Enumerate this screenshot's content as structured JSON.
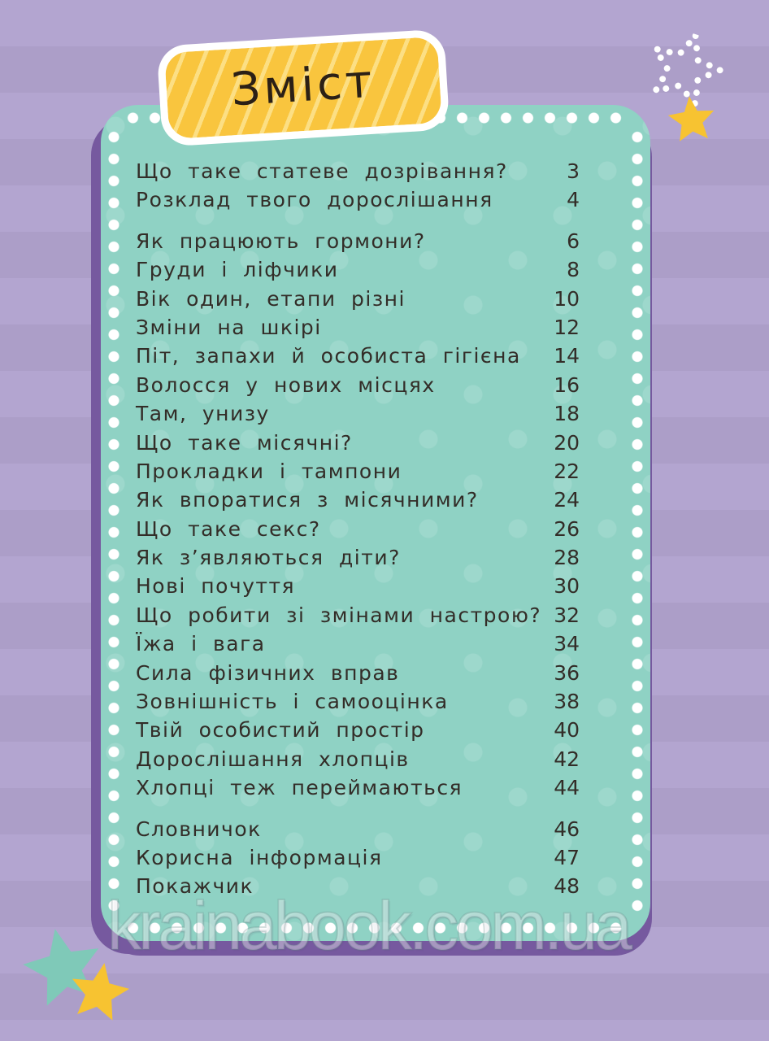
{
  "page": {
    "title": "Зміст",
    "watermark": "krainabook.com.ua"
  },
  "toc": {
    "groups": [
      {
        "items": [
          {
            "label": "Що таке статеве дозрівання?",
            "page": "3"
          },
          {
            "label": "Розклад твого дорослішання",
            "page": "4"
          }
        ]
      },
      {
        "items": [
          {
            "label": "Як працюють гормони?",
            "page": "6"
          },
          {
            "label": "Груди і ліфчики",
            "page": "8"
          },
          {
            "label": "Вік один, етапи різні",
            "page": "10"
          },
          {
            "label": "Зміни на шкірі",
            "page": "12"
          },
          {
            "label": "Піт, запахи й особиста гігієна",
            "page": "14"
          },
          {
            "label": "Волосся у нових місцях",
            "page": "16"
          },
          {
            "label": "Там, унизу",
            "page": "18"
          },
          {
            "label": "Що таке місячні?",
            "page": "20"
          },
          {
            "label": "Прокладки і тампони",
            "page": "22"
          },
          {
            "label": "Як впоратися з місячними?",
            "page": "24"
          },
          {
            "label": "Що таке секс?",
            "page": "26"
          },
          {
            "label": "Як з’являються діти?",
            "page": "28"
          },
          {
            "label": "Нові почуття",
            "page": "30"
          },
          {
            "label": "Що робити зі змінами настрою?",
            "page": "32"
          },
          {
            "label": "Їжа і вага",
            "page": "34"
          },
          {
            "label": "Сила фізичних вправ",
            "page": "36"
          },
          {
            "label": "Зовнішність і самооцінка",
            "page": "38"
          },
          {
            "label": "Твій особистий простір",
            "page": "40"
          },
          {
            "label": "Дорослішання хлопців",
            "page": "42"
          },
          {
            "label": "Хлопці теж переймаються",
            "page": "44"
          }
        ]
      },
      {
        "items": [
          {
            "label": "Словничок",
            "page": "46"
          },
          {
            "label": "Корисна інформація",
            "page": "47"
          },
          {
            "label": "Покажчик",
            "page": "48"
          }
        ]
      }
    ]
  },
  "colors": {
    "background_stripe_light": "#b3a5d0",
    "background_stripe_dark": "#ac9ec8",
    "panel_teal": "#8fd2c4",
    "panel_shadow_purple": "#76599f",
    "banner_yellow": "#f9c53e",
    "banner_border_white": "#ffffff",
    "title_ink": "#2b2016",
    "text_ink": "#332d28",
    "star_yellow": "#f7c331",
    "star_teal": "#7fc9b8",
    "border_dots_white": "#ffffff"
  },
  "decorations": {
    "top_right": [
      "dotted-outline-star-icon",
      "yellow-star-icon"
    ],
    "bottom_left": [
      "teal-star-icon",
      "yellow-star-icon"
    ]
  }
}
